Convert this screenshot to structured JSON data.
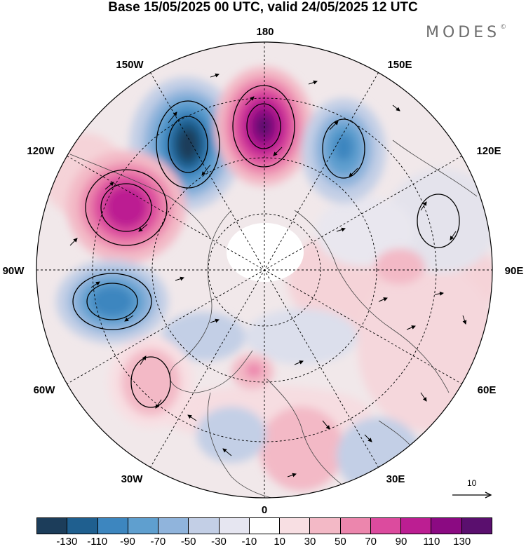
{
  "title": "Base 15/05/2025 00 UTC, valid 24/05/2025 12 UTC",
  "brand": {
    "name": "MODES",
    "mark": "©"
  },
  "longitude_labels": [
    "180",
    "150E",
    "120E",
    "90E",
    "60E",
    "30E",
    "0",
    "30W",
    "60W",
    "90W",
    "120W",
    "150W"
  ],
  "reference_vector": {
    "value": "10"
  },
  "colorbar": {
    "tick_labels": [
      "-130",
      "-110",
      "-90",
      "-70",
      "-50",
      "-30",
      "-10",
      "10",
      "30",
      "50",
      "70",
      "90",
      "110",
      "130"
    ],
    "colors": [
      "#1c3d5a",
      "#1f5f8f",
      "#3d86bf",
      "#5f9fcf",
      "#90b4dc",
      "#c3cfe6",
      "#e6e6f1",
      "#ffffff",
      "#f8dfe3",
      "#f3b9c6",
      "#ec86ad",
      "#dc4b9e",
      "#bc1e92",
      "#8b0a82",
      "#5a0f6e"
    ]
  },
  "anomaly_centers": [
    {
      "lon_label": "180",
      "sign": "positive",
      "peak": 130
    },
    {
      "lon_label": "150W",
      "sign": "negative",
      "peak": -130
    },
    {
      "lon_label": "150E",
      "sign": "negative",
      "peak": -90
    },
    {
      "lon_label": "120W",
      "sign": "positive",
      "peak": 110
    },
    {
      "lon_label": "90W",
      "sign": "negative",
      "peak": -90
    },
    {
      "lon_label": "60W",
      "sign": "positive",
      "peak": 50
    },
    {
      "lon_label": "90E",
      "sign": "positive",
      "peak": 30
    }
  ]
}
